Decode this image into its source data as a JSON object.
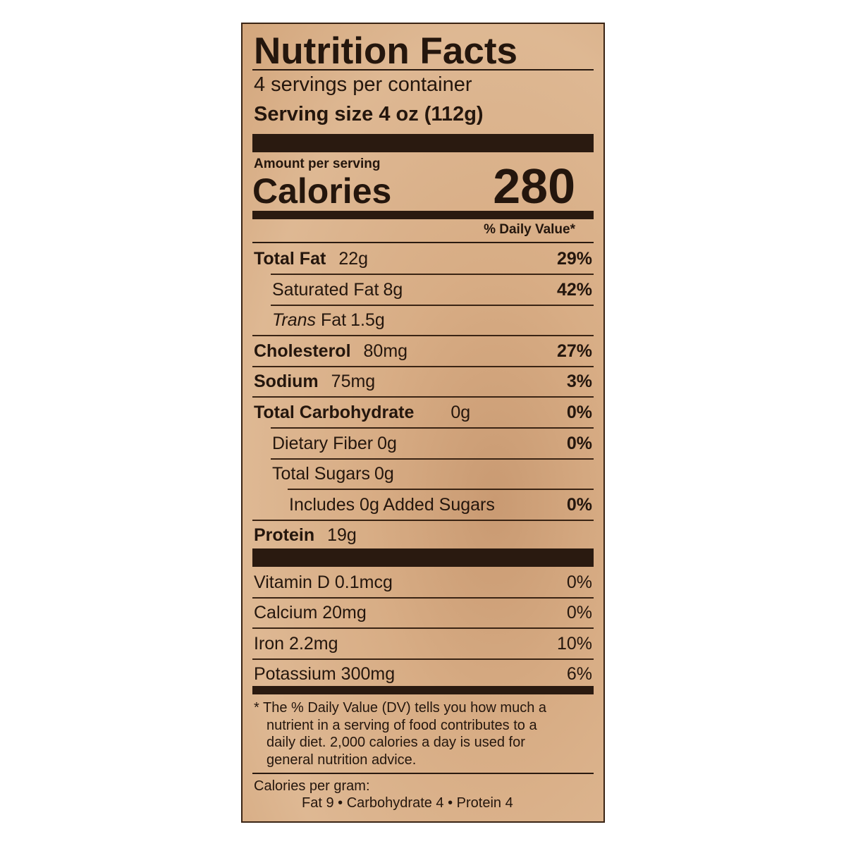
{
  "title": "Nutrition Facts",
  "servings_per_container": "4 servings per container",
  "serving_size_label": "Serving size",
  "serving_size_value": "4 oz (112g)",
  "amount_per_serving": "Amount per serving",
  "calories_label": "Calories",
  "calories_value": "280",
  "daily_value_header": "% Daily Value*",
  "nutrients": [
    {
      "name": "Total Fat",
      "amount": "22g",
      "dv": "29%"
    },
    {
      "name": "Saturated Fat",
      "amount": "8g",
      "dv": "42%"
    },
    {
      "name": "Trans",
      "name_suffix": " Fat",
      "amount": "1.5g",
      "dv": ""
    },
    {
      "name": "Cholesterol",
      "amount": "80mg",
      "dv": "27%"
    },
    {
      "name": "Sodium",
      "amount": "75mg",
      "dv": "3%"
    },
    {
      "name": "Total Carbohydrate",
      "amount": "0g",
      "dv": "0%"
    },
    {
      "name": "Dietary Fiber",
      "amount": "0g",
      "dv": "0%"
    },
    {
      "name": "Total Sugars",
      "amount": "0g",
      "dv": ""
    },
    {
      "name": "Includes 0g Added Sugars",
      "amount": "",
      "dv": "0%"
    },
    {
      "name": "Protein",
      "amount": "19g",
      "dv": ""
    }
  ],
  "vitamins": [
    {
      "name": "Vitamin D",
      "amount": "0.1mcg",
      "dv": "0%"
    },
    {
      "name": "Calcium",
      "amount": "20mg",
      "dv": "0%"
    },
    {
      "name": "Iron",
      "amount": "2.2mg",
      "dv": "10%"
    },
    {
      "name": "Potassium",
      "amount": "300mg",
      "dv": "6%"
    }
  ],
  "footnote": [
    "* The % Daily Value (DV) tells you how much a",
    "nutrient in a serving of food contributes to a",
    "daily diet. 2,000 calories a day is used for",
    "general nutrition advice."
  ],
  "calories_per_gram_label": "Calories per gram:",
  "calories_per_gram": "Fat 9 • Carbohydrate 4 • Protein 4"
}
